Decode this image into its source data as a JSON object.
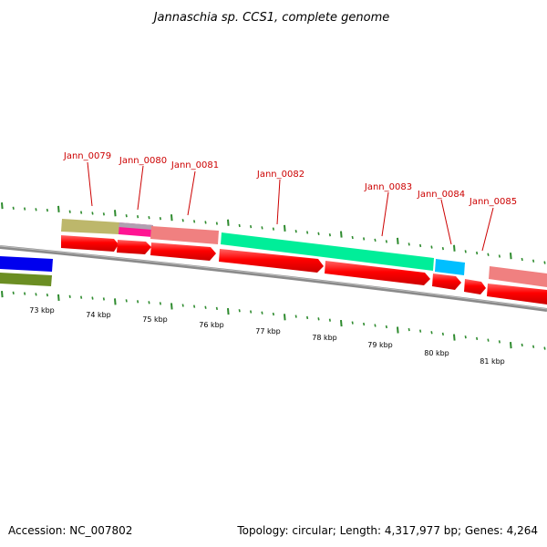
{
  "title": "Jannaschia sp. CCS1, complete genome",
  "footer": {
    "accession": "Accession: NC_007802",
    "stats": "Topology: circular; Length: 4,317,977 bp; Genes: 4,264"
  },
  "genes": [
    "Jann_0079",
    "Jann_0080",
    "Jann_0081",
    "Jann_0082",
    "Jann_0083",
    "Jann_0084",
    "Jann_0085"
  ],
  "scale": [
    "73 kbp",
    "74 kbp",
    "75 kbp",
    "76 kbp",
    "77 kbp",
    "78 kbp",
    "79 kbp",
    "80 kbp",
    "81 kbp"
  ],
  "colors": {
    "backbone": "#8a8a8a",
    "tick": "#2e8b2e",
    "cds": "#ff0000",
    "gene_label": "#cc0000",
    "blue_track": "#0000ee",
    "olive_track": "#6b8e23",
    "khaki_feature": "#bdb76b",
    "magenta_feature": "#ff1493",
    "salmon_feature": "#f08080",
    "teal_feature": "#00ee99",
    "cyan_feature": "#00bfff"
  }
}
